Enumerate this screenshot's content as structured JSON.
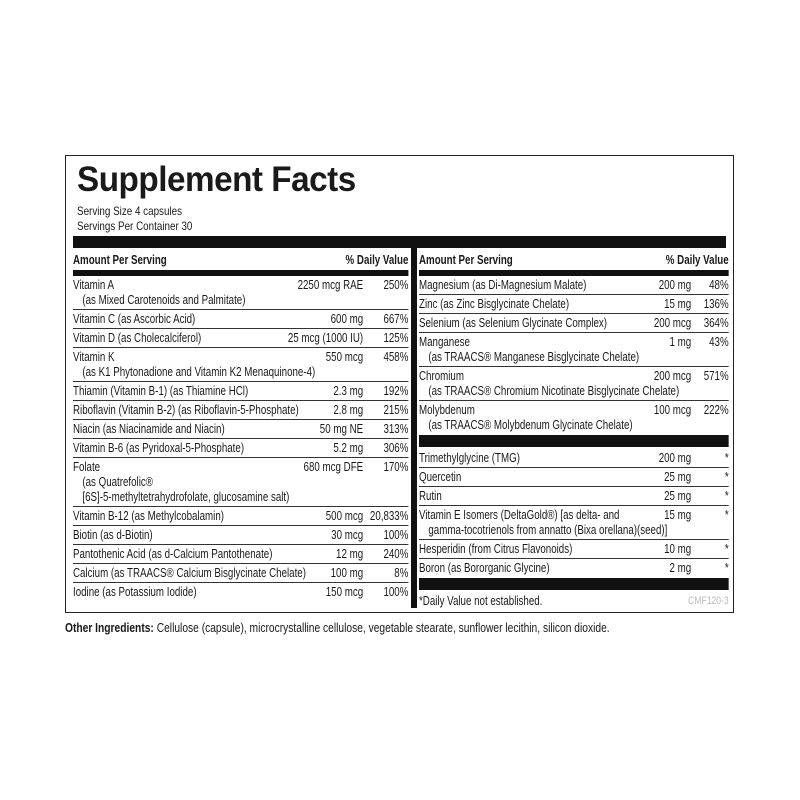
{
  "title": "Supplement Facts",
  "serving_size": "Serving Size 4 capsules",
  "servings_per_container": "Servings Per Container 30",
  "header": {
    "amount": "Amount Per Serving",
    "dv": "% Daily Value"
  },
  "left": [
    {
      "name": "Vitamin A",
      "sub": "(as Mixed Carotenoids and Palmitate)",
      "amount": "2250 mcg RAE",
      "dv": "250%"
    },
    {
      "name": "Vitamin C (as Ascorbic Acid)",
      "amount": "600 mg",
      "dv": "667%"
    },
    {
      "name": "Vitamin D (as Cholecalciferol)",
      "amount": "25 mcg (1000 IU)",
      "dv": "125%"
    },
    {
      "name": "Vitamin K",
      "sub": "(as K1 Phytonadione and Vitamin K2 Menaquinone-4)",
      "amount": "550 mcg",
      "dv": "458%"
    },
    {
      "name": "Thiamin (Vitamin B-1) (as Thiamine HCl)",
      "amount": "2.3 mg",
      "dv": "192%"
    },
    {
      "name": "Riboflavin (Vitamin B-2) (as Riboflavin-5-Phosphate)",
      "amount": "2.8 mg",
      "dv": "215%"
    },
    {
      "name": "Niacin (as Niacinamide and Niacin)",
      "amount": "50 mg NE",
      "dv": "313%"
    },
    {
      "name": "Vitamin B-6 (as Pyridoxal-5-Phosphate)",
      "amount": "5.2 mg",
      "dv": "306%"
    },
    {
      "name": "Folate",
      "sub": "(as Quatrefolic®",
      "sub2": "[6S]-5-methyltetrahydrofolate, glucosamine salt)",
      "amount": "680 mcg DFE",
      "dv": "170%"
    },
    {
      "name": "Vitamin B-12 (as Methylcobalamin)",
      "amount": "500 mcg",
      "dv": "20,833%"
    },
    {
      "name": "Biotin (as d-Biotin)",
      "amount": "30 mcg",
      "dv": "100%"
    },
    {
      "name": "Pantothenic Acid (as d-Calcium Pantothenate)",
      "amount": "12 mg",
      "dv": "240%"
    },
    {
      "name": "Calcium (as TRAACS® Calcium Bisglycinate Chelate)",
      "amount": "100 mg",
      "dv": "8%"
    },
    {
      "name": "Iodine (as Potassium Iodide)",
      "amount": "150 mcg",
      "dv": "100%"
    }
  ],
  "right": [
    {
      "name": "Magnesium (as Di-Magnesium Malate)",
      "amount": "200 mg",
      "dv": "48%"
    },
    {
      "name": "Zinc (as Zinc Bisglycinate Chelate)",
      "amount": "15 mg",
      "dv": "136%"
    },
    {
      "name": "Selenium (as Selenium Glycinate Complex)",
      "amount": "200 mcg",
      "dv": "364%"
    },
    {
      "name": "Manganese",
      "sub": "(as TRAACS® Manganese Bisglycinate Chelate)",
      "amount": "1 mg",
      "dv": "43%"
    },
    {
      "name": "Chromium",
      "sub": "(as TRAACS® Chromium Nicotinate Bisglycinate Chelate)",
      "amount": "200 mcg",
      "dv": "571%"
    },
    {
      "name": "Molybdenum",
      "sub": "(as TRAACS® Molybdenum Glycinate Chelate)",
      "amount": "100 mcg",
      "dv": "222%"
    }
  ],
  "right2": [
    {
      "name": "Trimethylglycine (TMG)",
      "amount": "200 mg",
      "dv": "*"
    },
    {
      "name": "Quercetin",
      "amount": "25 mg",
      "dv": "*"
    },
    {
      "name": "Rutin",
      "amount": "25 mg",
      "dv": "*"
    },
    {
      "name": "Vitamin E Isomers (DeltaGold®)  [as delta- and",
      "sub": "gamma-tocotrienols from annatto (Bixa orellana)(seed)]",
      "amount": "15 mg",
      "dv": "*"
    },
    {
      "name": "Hesperidin (from Citrus Flavonoids)",
      "amount": "10 mg",
      "dv": "*"
    },
    {
      "name": "Boron (as Bororganic Glycine)",
      "amount": "2 mg",
      "dv": "*"
    }
  ],
  "footnote": "*Daily Value not established.",
  "code": "CMF120-3",
  "other_label": "Other Ingredients:",
  "other_text": " Cellulose (capsule), microcrystalline cellulose, vegetable stearate, sunflower lecithin, silicon dioxide."
}
